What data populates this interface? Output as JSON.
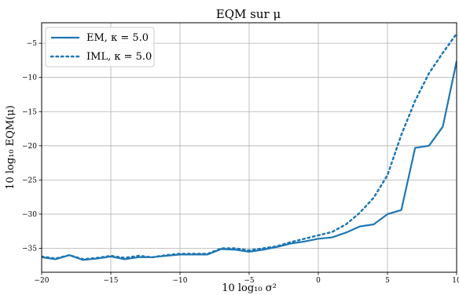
{
  "chart_data": {
    "type": "line",
    "title": "EQM sur μ",
    "xlabel": "10 log₁₀ σ²",
    "ylabel": "10 log₁₀ EQM(μ)",
    "xlim": [
      -20,
      10
    ],
    "ylim": [
      -38.5,
      -2
    ],
    "xticks": [
      -20,
      -15,
      -10,
      -5,
      0,
      5,
      10
    ],
    "xtick_labels": [
      "−20",
      "−15",
      "−10",
      "−5",
      "0",
      "5",
      "10"
    ],
    "yticks": [
      -35,
      -30,
      -25,
      -20,
      -15,
      -10,
      -5
    ],
    "ytick_labels": [
      "−35",
      "−30",
      "−25",
      "−20",
      "−15",
      "−10",
      "−5"
    ],
    "grid": true,
    "legend_position": "top-left",
    "series": [
      {
        "name": "EM, κ = 5.0",
        "style": "solid",
        "color": "#1f77b4",
        "x": [
          -20,
          -19,
          -18,
          -17,
          -16,
          -15,
          -14,
          -13,
          -12,
          -11,
          -10,
          -9,
          -8,
          -7,
          -6,
          -5,
          -4,
          -3,
          -2,
          -1,
          0,
          1,
          2,
          3,
          4,
          5,
          6,
          7,
          8,
          9,
          10
        ],
        "y": [
          -36.3,
          -36.6,
          -36.0,
          -36.7,
          -36.5,
          -36.2,
          -36.6,
          -36.3,
          -36.3,
          -36.1,
          -35.9,
          -35.9,
          -35.9,
          -35.1,
          -35.2,
          -35.5,
          -35.2,
          -34.8,
          -34.3,
          -34.0,
          -33.6,
          -33.4,
          -32.7,
          -31.8,
          -31.5,
          -30.0,
          -29.4,
          -20.3,
          -20.0,
          -17.2,
          -7.6
        ]
      },
      {
        "name": "IML, κ = 5.0",
        "style": "dotted",
        "color": "#1f77b4",
        "x": [
          -20,
          -19,
          -18,
          -17,
          -16,
          -15,
          -14,
          -13,
          -12,
          -11,
          -10,
          -9,
          -8,
          -7,
          -6,
          -5,
          -4,
          -3,
          -2,
          -1,
          0,
          1,
          2,
          3,
          4,
          5,
          6,
          7,
          8,
          9,
          10
        ],
        "y": [
          -36.2,
          -36.5,
          -36.0,
          -36.6,
          -36.4,
          -36.1,
          -36.4,
          -36.1,
          -36.3,
          -36.0,
          -35.8,
          -35.8,
          -35.8,
          -35.0,
          -35.0,
          -35.3,
          -35.0,
          -34.7,
          -34.1,
          -33.6,
          -33.1,
          -32.6,
          -31.5,
          -29.8,
          -27.6,
          -24.3,
          -18.4,
          -13.4,
          -9.4,
          -6.4,
          -3.6
        ]
      }
    ]
  }
}
